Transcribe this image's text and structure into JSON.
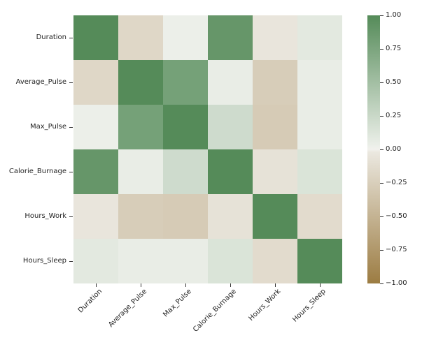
{
  "figure": {
    "background": "#ffffff"
  },
  "chart_data": {
    "type": "heatmap",
    "title": "",
    "xlabel": "",
    "ylabel": "",
    "x_tick_labels": [
      "Duration",
      "Average_Pulse",
      "Max_Pulse",
      "Calorie_Burnage",
      "Hours_Work",
      "Hours_Sleep"
    ],
    "y_tick_labels": [
      "Duration",
      "Average_Pulse",
      "Max_Pulse",
      "Calorie_Burnage",
      "Hours_Work",
      "Hours_Sleep"
    ],
    "matrix": [
      [
        1.0,
        -0.155408,
        0.009403,
        0.889807,
        -0.026898,
        0.067052
      ],
      [
        -0.155408,
        1.0,
        0.786535,
        0.02512,
        -0.248546,
        0.025858
      ],
      [
        0.009403,
        0.786535,
        1.0,
        0.203153,
        -0.266865,
        0.027719
      ],
      [
        0.889807,
        0.02512,
        0.203153,
        1.0,
        -0.058544,
        0.122364
      ],
      [
        -0.026898,
        -0.248546,
        -0.266865,
        -0.058544,
        1.0,
        -0.119422
      ],
      [
        0.067052,
        0.025858,
        0.027719,
        0.122364,
        -0.119422,
        1.0
      ]
    ],
    "vmin": -1,
    "vmax": 1,
    "center": 0,
    "square_cells": true,
    "grid": false,
    "legend_position": "right",
    "colorbar": {
      "tick_labels": [
        "1.00",
        "0.75",
        "0.50",
        "0.25",
        "0.00",
        "−0.25",
        "−0.50",
        "−0.75",
        "−1.00"
      ],
      "tick_values": [
        1.0,
        0.75,
        0.5,
        0.25,
        0.0,
        -0.25,
        -0.5,
        -0.75,
        -1.0
      ]
    },
    "colors": {
      "positive_max": "#558b59",
      "center_positive": "#edf0ea",
      "center_white": "#f2f1ed",
      "center_negative": "#ebe8e0",
      "negative_max": "#9c7c42",
      "tick_text": "#1f1f1f",
      "tick_mark": "#333333",
      "background": "#ffffff"
    }
  }
}
